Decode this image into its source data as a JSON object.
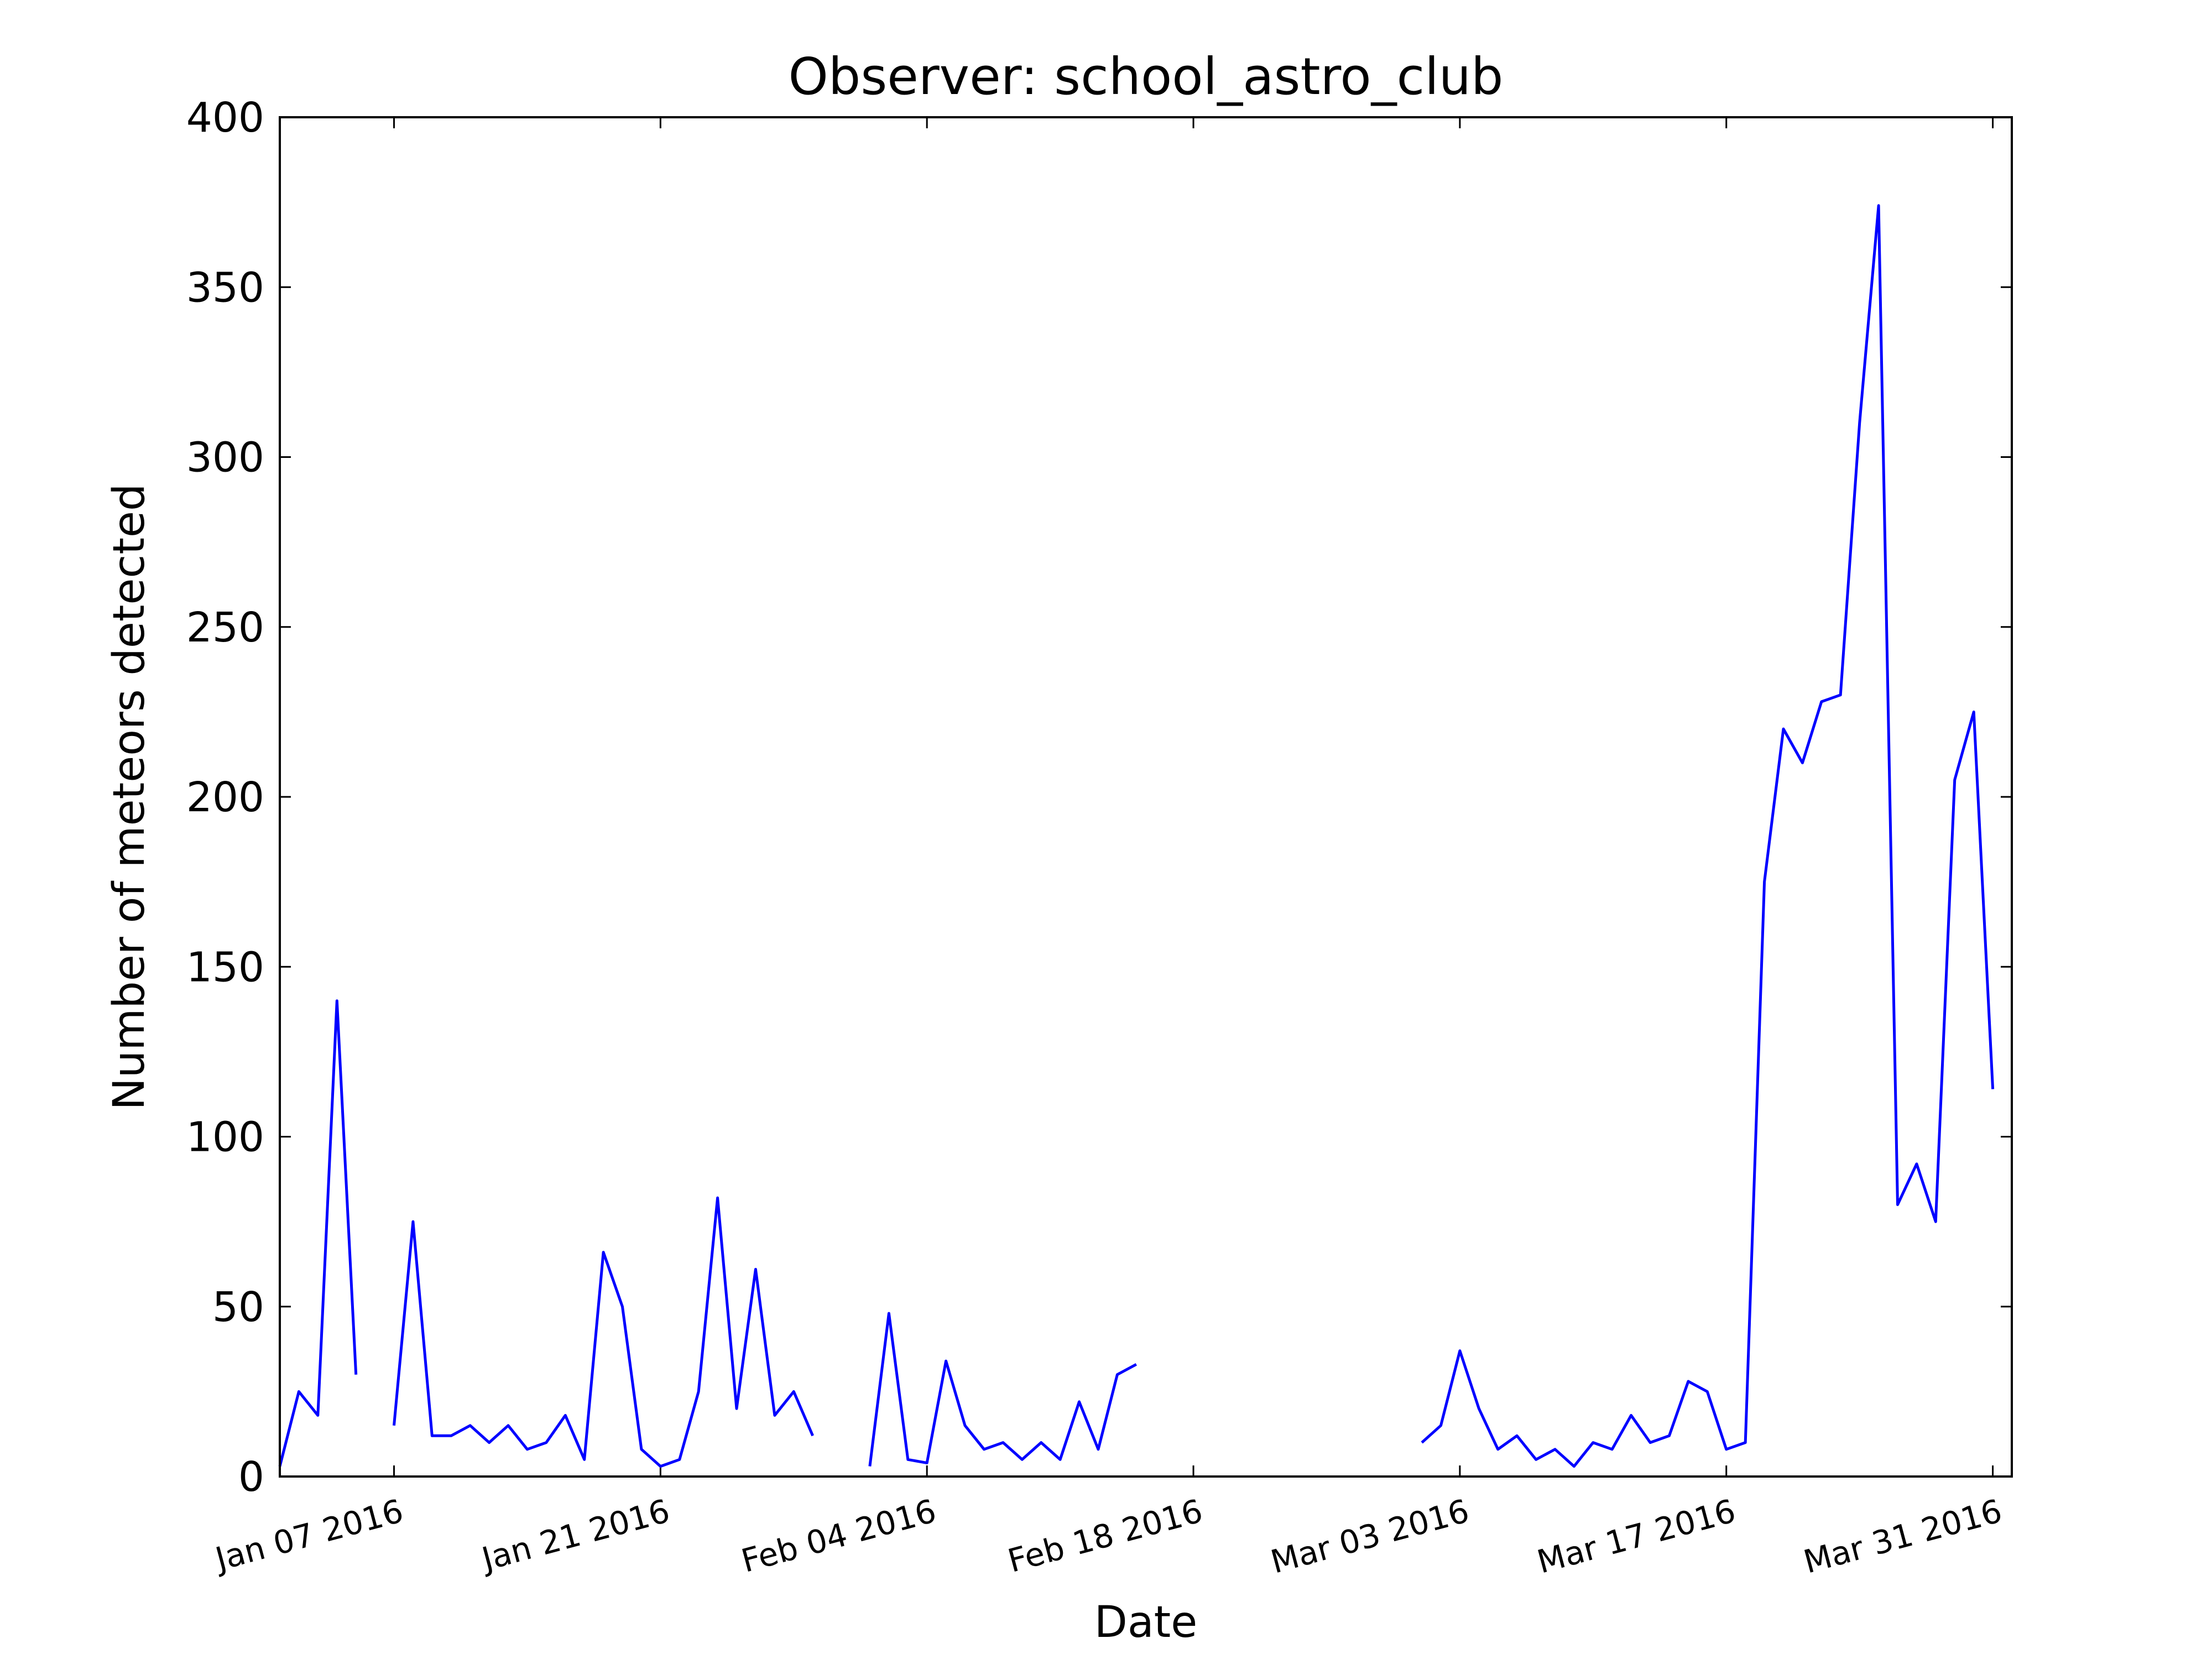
{
  "chart_data": {
    "type": "line",
    "title": "Observer: school_astro_club",
    "xlabel": "Date",
    "ylabel": "Number of meteors detected",
    "color": "#0000ff",
    "x": [
      "Jan 01 2016",
      "Jan 02 2016",
      "Jan 03 2016",
      "Jan 04 2016",
      "Jan 05 2016",
      "Jan 06 2016",
      "Jan 07 2016",
      "Jan 08 2016",
      "Jan 09 2016",
      "Jan 10 2016",
      "Jan 11 2016",
      "Jan 12 2016",
      "Jan 13 2016",
      "Jan 14 2016",
      "Jan 15 2016",
      "Jan 16 2016",
      "Jan 17 2016",
      "Jan 18 2016",
      "Jan 19 2016",
      "Jan 20 2016",
      "Jan 21 2016",
      "Jan 22 2016",
      "Jan 23 2016",
      "Jan 24 2016",
      "Jan 25 2016",
      "Jan 26 2016",
      "Jan 27 2016",
      "Jan 28 2016",
      "Jan 29 2016",
      "Jan 30 2016",
      "Jan 31 2016",
      "Feb 01 2016",
      "Feb 02 2016",
      "Feb 03 2016",
      "Feb 04 2016",
      "Feb 05 2016",
      "Feb 06 2016",
      "Feb 07 2016",
      "Feb 08 2016",
      "Feb 09 2016",
      "Feb 10 2016",
      "Feb 11 2016",
      "Feb 12 2016",
      "Feb 13 2016",
      "Feb 14 2016",
      "Feb 15 2016",
      "Feb 16 2016",
      "Feb 17 2016",
      "Feb 18 2016",
      "Feb 19 2016",
      "Feb 20 2016",
      "Feb 21 2016",
      "Feb 22 2016",
      "Feb 23 2016",
      "Feb 24 2016",
      "Feb 25 2016",
      "Feb 26 2016",
      "Feb 27 2016",
      "Feb 28 2016",
      "Feb 29 2016",
      "Mar 01 2016",
      "Mar 02 2016",
      "Mar 03 2016",
      "Mar 04 2016",
      "Mar 05 2016",
      "Mar 06 2016",
      "Mar 07 2016",
      "Mar 08 2016",
      "Mar 09 2016",
      "Mar 10 2016",
      "Mar 11 2016",
      "Mar 12 2016",
      "Mar 13 2016",
      "Mar 14 2016",
      "Mar 15 2016",
      "Mar 16 2016",
      "Mar 17 2016",
      "Mar 18 2016",
      "Mar 19 2016",
      "Mar 20 2016",
      "Mar 21 2016",
      "Mar 22 2016",
      "Mar 23 2016",
      "Mar 24 2016",
      "Mar 25 2016",
      "Mar 26 2016",
      "Mar 27 2016",
      "Mar 28 2016",
      "Mar 29 2016",
      "Mar 30 2016",
      "Mar 31 2016"
    ],
    "values": [
      3,
      25,
      18,
      140,
      30,
      null,
      15,
      75,
      12,
      12,
      15,
      10,
      15,
      8,
      10,
      18,
      5,
      66,
      50,
      8,
      3,
      5,
      25,
      82,
      20,
      61,
      18,
      25,
      12,
      null,
      null,
      3,
      48,
      5,
      4,
      34,
      15,
      8,
      10,
      5,
      10,
      5,
      22,
      8,
      30,
      33,
      null,
      null,
      null,
      null,
      null,
      null,
      null,
      null,
      null,
      null,
      null,
      null,
      null,
      null,
      10,
      15,
      37,
      20,
      8,
      12,
      5,
      8,
      3,
      10,
      8,
      18,
      10,
      12,
      28,
      25,
      8,
      10,
      175,
      220,
      210,
      228,
      230,
      310,
      374,
      80,
      92,
      75,
      205,
      225,
      114
    ],
    "xlim": [
      "Jan 01 2016",
      "Apr 01 2016"
    ],
    "xticks": [
      "Jan 07 2016",
      "Jan 21 2016",
      "Feb 04 2016",
      "Feb 18 2016",
      "Mar 03 2016",
      "Mar 17 2016",
      "Mar 31 2016"
    ],
    "ylim": [
      0,
      400
    ],
    "yticks": [
      0,
      50,
      100,
      150,
      200,
      250,
      300,
      350,
      400
    ]
  }
}
